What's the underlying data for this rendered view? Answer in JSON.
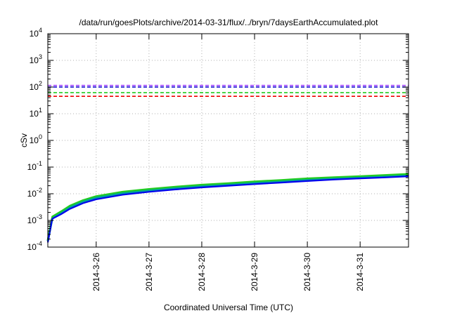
{
  "chart_data": {
    "type": "line",
    "title": "/data/run/goesPlots/archive/2014-03-31/flux/../bryn/7daysEarthAccumulated.plot",
    "xlabel": "Coordinated Universal Time (UTC)",
    "ylabel": "cSv",
    "y_scale": "log",
    "ylim": [
      0.0001,
      10000
    ],
    "xlim": [
      "2014-03-25T02:00",
      "2014-03-31T22:00"
    ],
    "x_ticks": [
      "2014-3-26",
      "2014-3-27",
      "2014-3-28",
      "2014-3-29",
      "2014-3-30",
      "2014-3-31"
    ],
    "y_ticks": [
      {
        "value": 0.0001,
        "base": "10",
        "exp": "-4"
      },
      {
        "value": 0.001,
        "base": "10",
        "exp": "-3"
      },
      {
        "value": 0.01,
        "base": "10",
        "exp": "-2"
      },
      {
        "value": 0.1,
        "base": "10",
        "exp": "-1"
      },
      {
        "value": 1,
        "base": "10",
        "exp": "0"
      },
      {
        "value": 10,
        "base": "10",
        "exp": "1"
      },
      {
        "value": 100,
        "base": "10",
        "exp": "2"
      },
      {
        "value": 1000,
        "base": "10",
        "exp": "3"
      },
      {
        "value": 10000,
        "base": "10",
        "exp": "4"
      }
    ],
    "grid": true,
    "thresholds": [
      {
        "value": 115,
        "color": "#a040ff"
      },
      {
        "value": 100,
        "color": "#0000cc"
      },
      {
        "value": 62,
        "color": "#22cc22"
      },
      {
        "value": 45,
        "color": "#ee0000"
      }
    ],
    "series": [
      {
        "color": "#00a0a0",
        "width": 3.2,
        "x": [
          "2014-03-25T02:00",
          "2014-03-25T04:00",
          "2014-03-25T08:00",
          "2014-03-25T12:00",
          "2014-03-25T18:00",
          "2014-03-26T00:00",
          "2014-03-26T12:00",
          "2014-03-27T00:00",
          "2014-03-27T12:00",
          "2014-03-28T00:00",
          "2014-03-28T12:00",
          "2014-03-29T00:00",
          "2014-03-29T12:00",
          "2014-03-30T00:00",
          "2014-03-30T12:00",
          "2014-03-31T00:00",
          "2014-03-31T12:00",
          "2014-03-31T22:00"
        ],
        "values": [
          0.00017,
          0.0012,
          0.0019,
          0.0031,
          0.005,
          0.0072,
          0.0105,
          0.0135,
          0.0165,
          0.0195,
          0.0225,
          0.026,
          0.0295,
          0.034,
          0.038,
          0.042,
          0.046,
          0.05
        ]
      },
      {
        "color": "#22cc22",
        "width": 2.2,
        "x": [
          "2014-03-25T02:00",
          "2014-03-25T04:00",
          "2014-03-25T08:00",
          "2014-03-25T12:00",
          "2014-03-25T18:00",
          "2014-03-26T00:00",
          "2014-03-26T12:00",
          "2014-03-27T00:00",
          "2014-03-27T12:00",
          "2014-03-28T00:00",
          "2014-03-28T12:00",
          "2014-03-29T00:00",
          "2014-03-29T12:00",
          "2014-03-30T00:00",
          "2014-03-30T12:00",
          "2014-03-31T00:00",
          "2014-03-31T12:00",
          "2014-03-31T22:00"
        ],
        "values": [
          0.0002,
          0.0014,
          0.0022,
          0.0036,
          0.0058,
          0.0082,
          0.012,
          0.0152,
          0.0185,
          0.022,
          0.025,
          0.029,
          0.033,
          0.038,
          0.042,
          0.046,
          0.051,
          0.056
        ]
      },
      {
        "color": "#0000ee",
        "width": 2.2,
        "x": [
          "2014-03-25T02:00",
          "2014-03-25T04:00",
          "2014-03-25T08:00",
          "2014-03-25T12:00",
          "2014-03-25T18:00",
          "2014-03-26T00:00",
          "2014-03-26T12:00",
          "2014-03-27T00:00",
          "2014-03-27T12:00",
          "2014-03-28T00:00",
          "2014-03-28T12:00",
          "2014-03-29T00:00",
          "2014-03-29T12:00",
          "2014-03-30T00:00",
          "2014-03-30T12:00",
          "2014-03-31T00:00",
          "2014-03-31T12:00",
          "2014-03-31T22:00"
        ],
        "values": [
          0.00015,
          0.00115,
          0.0017,
          0.0027,
          0.0044,
          0.0062,
          0.0092,
          0.0118,
          0.0145,
          0.0172,
          0.02,
          0.023,
          0.0262,
          0.03,
          0.034,
          0.0375,
          0.041,
          0.045
        ]
      }
    ]
  }
}
